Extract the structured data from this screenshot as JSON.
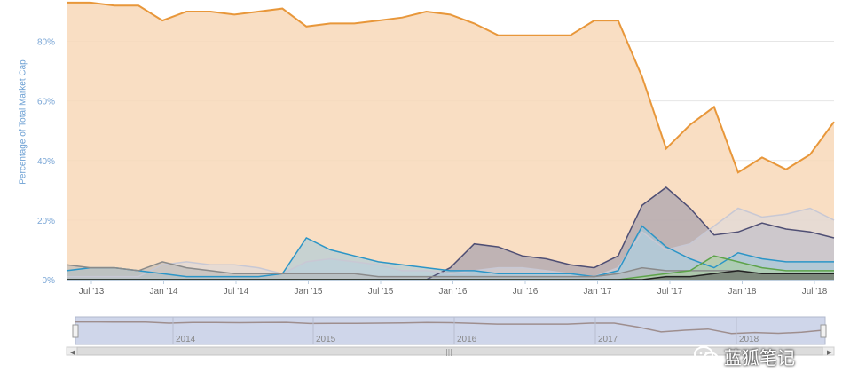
{
  "chart_data": {
    "type": "area",
    "title": "",
    "xlabel": "",
    "ylabel": "Percentage of Total Market Cap",
    "ylim": [
      0,
      90
    ],
    "yticks": [
      "0%",
      "20%",
      "40%",
      "60%",
      "80%"
    ],
    "xticks": [
      "Jul '13",
      "Jan '14",
      "Jul '14",
      "Jan '15",
      "Jul '15",
      "Jan '16",
      "Jul '16",
      "Jan '17",
      "Jul '17",
      "Jan '18",
      "Jul '18"
    ],
    "grid": true,
    "legend": "none",
    "x": [
      "2013-05",
      "2013-07",
      "2013-09",
      "2013-11",
      "2014-01",
      "2014-03",
      "2014-05",
      "2014-07",
      "2014-09",
      "2014-11",
      "2015-01",
      "2015-03",
      "2015-05",
      "2015-07",
      "2015-09",
      "2015-11",
      "2016-01",
      "2016-03",
      "2016-05",
      "2016-07",
      "2016-09",
      "2016-11",
      "2017-01",
      "2017-03",
      "2017-05",
      "2017-07",
      "2017-09",
      "2017-11",
      "2018-01",
      "2018-03",
      "2018-05",
      "2018-07",
      "2018-08"
    ],
    "series": [
      {
        "color": "#e8973a",
        "values": [
          93,
          93,
          92,
          92,
          87,
          90,
          90,
          89,
          90,
          91,
          85,
          86,
          86,
          87,
          88,
          90,
          89,
          86,
          82,
          82,
          82,
          82,
          87,
          87,
          68,
          44,
          52,
          58,
          36,
          41,
          37,
          42,
          53
        ]
      },
      {
        "color": "#4f4f74",
        "values": [
          0,
          0,
          0,
          0,
          0,
          0,
          0,
          0,
          0,
          0,
          0,
          0,
          0,
          0,
          0,
          0,
          4,
          12,
          11,
          8,
          7,
          5,
          4,
          8,
          25,
          31,
          24,
          15,
          16,
          19,
          17,
          16,
          14
        ]
      },
      {
        "color": "#c8c8d4",
        "values": [
          1,
          1,
          1,
          1,
          5,
          6,
          5,
          5,
          4,
          2,
          6,
          7,
          6,
          5,
          3,
          3,
          2,
          3,
          4,
          4,
          3,
          2,
          1,
          4,
          16,
          10,
          12,
          18,
          24,
          21,
          22,
          24,
          20
        ]
      },
      {
        "color": "#2b95c7",
        "values": [
          3,
          4,
          4,
          3,
          2,
          1,
          1,
          1,
          1,
          2,
          14,
          10,
          8,
          6,
          5,
          4,
          3,
          3,
          2,
          2,
          2,
          2,
          1,
          3,
          18,
          11,
          7,
          4,
          9,
          7,
          6,
          6,
          6
        ]
      },
      {
        "color": "#8a8a8a",
        "values": [
          5,
          4,
          4,
          3,
          6,
          4,
          3,
          2,
          2,
          2,
          2,
          2,
          2,
          1,
          1,
          1,
          1,
          1,
          1,
          1,
          1,
          1,
          1,
          2,
          4,
          3,
          3,
          3,
          3,
          2,
          2,
          2,
          2
        ]
      },
      {
        "color": "#5da34a",
        "values": [
          0,
          0,
          0,
          0,
          0,
          0,
          0,
          0,
          0,
          0,
          0,
          0,
          0,
          0,
          0,
          0,
          0,
          0,
          0,
          0,
          0,
          0,
          0,
          0,
          1,
          2,
          3,
          8,
          6,
          4,
          3,
          3,
          3
        ]
      },
      {
        "color": "#222222",
        "values": [
          0,
          0,
          0,
          0,
          0,
          0,
          0,
          0,
          0,
          0,
          0,
          0,
          0,
          0,
          0,
          0,
          0,
          0,
          0,
          0,
          0,
          0,
          0,
          0,
          0,
          1,
          1,
          2,
          3,
          2,
          2,
          2,
          2
        ]
      }
    ],
    "navigator": {
      "labels": [
        "2014",
        "2015",
        "2016",
        "2017",
        "2018"
      ],
      "values": [
        93,
        93,
        92,
        92,
        87,
        90,
        90,
        89,
        90,
        91,
        85,
        86,
        86,
        87,
        88,
        90,
        89,
        86,
        82,
        82,
        82,
        82,
        87,
        87,
        68,
        44,
        52,
        58,
        36,
        41,
        37,
        42,
        53
      ]
    }
  },
  "watermark": {
    "text": "蓝狐笔记",
    "icon": "wechat-icon"
  }
}
